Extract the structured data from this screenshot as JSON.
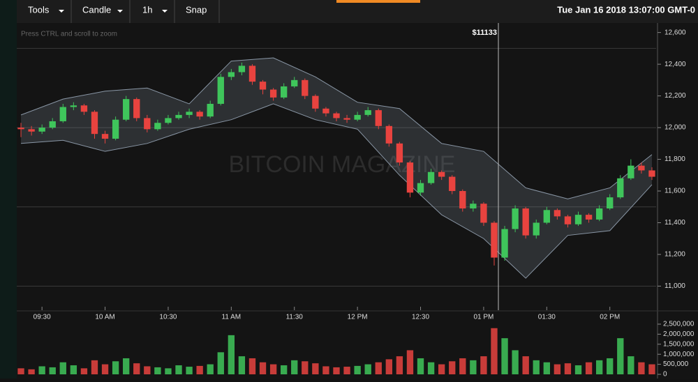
{
  "toolbar": {
    "buttons": [
      "Tools",
      "Candle",
      "1h",
      "Snap"
    ],
    "datetime": "Tue Jan 16 2018 13:07:00 GMT-0"
  },
  "chart_data": {
    "type": "candlestick",
    "hint": "Press CTRL and scroll to zoom",
    "watermark": "BITCOIN MAGAZINE",
    "up_color": "#3fc55b",
    "down_color": "#e8433f",
    "band_color": "#8a97a6",
    "x": [
      560,
      565,
      570,
      575,
      580,
      585,
      590,
      595,
      600,
      605,
      610,
      615,
      620,
      625,
      630,
      635,
      640,
      645,
      650,
      655,
      660,
      665,
      670,
      675,
      680,
      685,
      690,
      695,
      700,
      705,
      710,
      715,
      720,
      725,
      730,
      735,
      740,
      745,
      750,
      755,
      760,
      765,
      770,
      775,
      780,
      785,
      790,
      795,
      800,
      805,
      810,
      815,
      820,
      825,
      830,
      835,
      840,
      845,
      850,
      855,
      860
    ],
    "open": [
      12000,
      11990,
      11975,
      12000,
      12040,
      12130,
      12140,
      12100,
      11960,
      11930,
      12050,
      12180,
      12060,
      11990,
      12030,
      12060,
      12080,
      12100,
      12070,
      12150,
      12320,
      12350,
      12390,
      12290,
      12240,
      12190,
      12260,
      12300,
      12200,
      12120,
      12090,
      12060,
      12050,
      12080,
      12110,
      12010,
      11900,
      11780,
      11590,
      11650,
      11720,
      11690,
      11600,
      11490,
      11520,
      11400,
      11180,
      11360,
      11490,
      11320,
      11400,
      11480,
      11440,
      11390,
      11450,
      11420,
      11490,
      11560,
      11680,
      11760,
      11730
    ],
    "high": [
      12030,
      12010,
      12020,
      12060,
      12150,
      12160,
      12150,
      12110,
      11980,
      12070,
      12200,
      12190,
      12080,
      12050,
      12080,
      12100,
      12120,
      12110,
      12170,
      12340,
      12370,
      12410,
      12400,
      12300,
      12250,
      12280,
      12320,
      12310,
      12210,
      12130,
      12100,
      12080,
      12100,
      12130,
      12120,
      12020,
      11910,
      11790,
      11670,
      11740,
      11730,
      11700,
      11610,
      11540,
      11530,
      11410,
      11380,
      11510,
      11500,
      11420,
      11500,
      11490,
      11450,
      11470,
      11460,
      11510,
      11580,
      11700,
      11800,
      11780,
      11750
    ],
    "low": [
      11940,
      11950,
      11960,
      11990,
      12030,
      12110,
      12080,
      11930,
      11900,
      11920,
      12040,
      12040,
      11970,
      11980,
      12020,
      12050,
      12060,
      12050,
      12060,
      12140,
      12300,
      12330,
      12270,
      12210,
      12170,
      12180,
      12250,
      12180,
      12100,
      12070,
      12040,
      12030,
      12040,
      12070,
      11990,
      11880,
      11760,
      11560,
      11570,
      11640,
      11670,
      11580,
      11470,
      11470,
      11380,
      11130,
      11160,
      11340,
      11300,
      11300,
      11390,
      11420,
      11370,
      11380,
      11400,
      11410,
      11480,
      11550,
      11670,
      11710,
      11670
    ],
    "close": [
      11990,
      11975,
      12000,
      12040,
      12130,
      12140,
      12100,
      11960,
      11930,
      12050,
      12180,
      12060,
      11990,
      12030,
      12060,
      12080,
      12100,
      12070,
      12150,
      12320,
      12350,
      12390,
      12290,
      12240,
      12190,
      12260,
      12300,
      12200,
      12120,
      12090,
      12060,
      12050,
      12080,
      12110,
      12010,
      11900,
      11780,
      11590,
      11650,
      11720,
      11690,
      11600,
      11490,
      11520,
      11400,
      11180,
      11360,
      11490,
      11320,
      11400,
      11480,
      11440,
      11390,
      11450,
      11420,
      11490,
      11560,
      11680,
      11760,
      11730,
      11690
    ],
    "volume": [
      300000,
      250000,
      400000,
      350000,
      600000,
      450000,
      300000,
      700000,
      500000,
      650000,
      800000,
      550000,
      400000,
      350000,
      300000,
      450000,
      380000,
      420000,
      500000,
      1100000,
      1950000,
      900000,
      800000,
      600000,
      500000,
      450000,
      700000,
      650000,
      550000,
      400000,
      350000,
      380000,
      420000,
      500000,
      600000,
      750000,
      900000,
      1200000,
      800000,
      600000,
      500000,
      650000,
      800000,
      700000,
      900000,
      2300000,
      1800000,
      1200000,
      900000,
      700000,
      600000,
      500000,
      550000,
      450000,
      600000,
      700000,
      800000,
      1800000,
      900000,
      600000,
      500000
    ],
    "band": {
      "x": [
        560,
        580,
        600,
        620,
        640,
        660,
        680,
        700,
        720,
        740,
        760,
        780,
        800,
        820,
        840,
        860
      ],
      "upper": [
        12080,
        12180,
        12230,
        12250,
        12150,
        12420,
        12440,
        12320,
        12160,
        12120,
        11900,
        11850,
        11620,
        11550,
        11620,
        11830
      ],
      "lower": [
        11900,
        11920,
        11850,
        11900,
        11990,
        12050,
        12150,
        12050,
        11990,
        11700,
        11450,
        11300,
        11050,
        11320,
        11350,
        11640
      ]
    },
    "crosshair": {
      "x": 787,
      "label": "$11133"
    },
    "xlim": [
      558,
      862
    ],
    "xticks": [
      {
        "value": 570,
        "label": "09:30"
      },
      {
        "value": 600,
        "label": "10 AM"
      },
      {
        "value": 630,
        "label": "10:30"
      },
      {
        "value": 660,
        "label": "11 AM"
      },
      {
        "value": 690,
        "label": "11:30"
      },
      {
        "value": 720,
        "label": "12 PM"
      },
      {
        "value": 750,
        "label": "12:30"
      },
      {
        "value": 780,
        "label": "01 PM"
      },
      {
        "value": 810,
        "label": "01:30"
      },
      {
        "value": 840,
        "label": "02 PM"
      }
    ],
    "ylim": [
      10870,
      12660
    ],
    "yticks": [
      {
        "value": 11000,
        "label": "11,000"
      },
      {
        "value": 11200,
        "label": "11,200"
      },
      {
        "value": 11400,
        "label": "11,400"
      },
      {
        "value": 11600,
        "label": "11,600"
      },
      {
        "value": 11800,
        "label": "11,800"
      },
      {
        "value": 12000,
        "label": "12,000"
      },
      {
        "value": 12200,
        "label": "12,200"
      },
      {
        "value": 12400,
        "label": "12,400"
      },
      {
        "value": 12600,
        "label": "12,600"
      }
    ],
    "ygrid": [
      11000,
      11500,
      12000,
      12500
    ],
    "vlim": [
      0,
      2500000
    ],
    "vticks": [
      {
        "value": 0,
        "label": "0"
      },
      {
        "value": 500000,
        "label": "500,000"
      },
      {
        "value": 1000000,
        "label": "1,000,000"
      },
      {
        "value": 1500000,
        "label": "1,500,000"
      },
      {
        "value": 2000000,
        "label": "2,000,000"
      },
      {
        "value": 2500000,
        "label": "2,500,000"
      }
    ]
  }
}
